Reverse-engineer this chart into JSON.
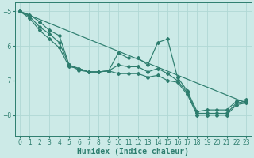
{
  "xlabel": "Humidex (Indice chaleur)",
  "ylabel": "",
  "xlim": [
    -0.5,
    23.5
  ],
  "ylim": [
    -8.6,
    -4.75
  ],
  "bg_color": "#cceae7",
  "grid_color": "#b0d8d4",
  "line_color": "#2d7d6e",
  "series": [
    {
      "points": [
        [
          0,
          -5.0
        ],
        [
          1,
          -5.15
        ],
        [
          2,
          -5.45
        ],
        [
          3,
          -5.65
        ],
        [
          4,
          -5.9
        ],
        [
          5,
          -6.55
        ],
        [
          6,
          -6.65
        ],
        [
          7,
          -6.75
        ],
        [
          8,
          -6.75
        ],
        [
          9,
          -6.72
        ],
        [
          10,
          -6.55
        ],
        [
          11,
          -6.6
        ],
        [
          12,
          -6.6
        ],
        [
          13,
          -6.75
        ],
        [
          14,
          -6.65
        ],
        [
          15,
          -6.8
        ],
        [
          16,
          -7.0
        ],
        [
          17,
          -7.35
        ],
        [
          18,
          -7.95
        ],
        [
          19,
          -7.95
        ],
        [
          20,
          -7.95
        ],
        [
          21,
          -7.95
        ],
        [
          22,
          -7.65
        ],
        [
          23,
          -7.6
        ]
      ],
      "has_markers": true
    },
    {
      "points": [
        [
          0,
          -5.0
        ],
        [
          1,
          -5.1
        ],
        [
          2,
          -5.3
        ],
        [
          3,
          -5.55
        ],
        [
          4,
          -5.7
        ],
        [
          5,
          -6.55
        ],
        [
          6,
          -6.7
        ],
        [
          7,
          -6.75
        ],
        [
          8,
          -6.75
        ],
        [
          9,
          -6.72
        ],
        [
          10,
          -6.2
        ],
        [
          11,
          -6.35
        ],
        [
          12,
          -6.35
        ],
        [
          13,
          -6.55
        ],
        [
          14,
          -5.9
        ],
        [
          15,
          -5.8
        ],
        [
          16,
          -6.9
        ],
        [
          17,
          -7.3
        ],
        [
          18,
          -7.9
        ],
        [
          19,
          -7.85
        ],
        [
          20,
          -7.85
        ],
        [
          21,
          -7.85
        ],
        [
          22,
          -7.6
        ],
        [
          23,
          -7.55
        ]
      ],
      "has_markers": true
    },
    {
      "points": [
        [
          0,
          -5.0
        ],
        [
          1,
          -5.2
        ],
        [
          2,
          -5.55
        ],
        [
          3,
          -5.8
        ],
        [
          4,
          -6.05
        ],
        [
          5,
          -6.6
        ],
        [
          6,
          -6.65
        ],
        [
          7,
          -6.75
        ],
        [
          8,
          -6.75
        ],
        [
          9,
          -6.72
        ],
        [
          10,
          -6.8
        ],
        [
          11,
          -6.8
        ],
        [
          12,
          -6.8
        ],
        [
          13,
          -6.9
        ],
        [
          14,
          -6.85
        ],
        [
          15,
          -7.0
        ],
        [
          16,
          -7.05
        ],
        [
          17,
          -7.4
        ],
        [
          18,
          -8.0
        ],
        [
          19,
          -8.0
        ],
        [
          20,
          -8.0
        ],
        [
          21,
          -8.0
        ],
        [
          22,
          -7.7
        ],
        [
          23,
          -7.65
        ]
      ],
      "has_markers": true
    },
    {
      "points": [
        [
          0,
          -5.0
        ],
        [
          23,
          -7.65
        ]
      ],
      "has_markers": false
    }
  ],
  "yticks": [
    -5,
    -6,
    -7,
    -8
  ],
  "xticks": [
    0,
    1,
    2,
    3,
    4,
    5,
    6,
    7,
    8,
    9,
    10,
    11,
    12,
    13,
    14,
    15,
    16,
    17,
    18,
    19,
    20,
    21,
    22,
    23
  ],
  "tick_fontsize": 5.5,
  "xlabel_fontsize": 7,
  "marker": "D",
  "markersize": 2.0,
  "linewidth": 0.85
}
